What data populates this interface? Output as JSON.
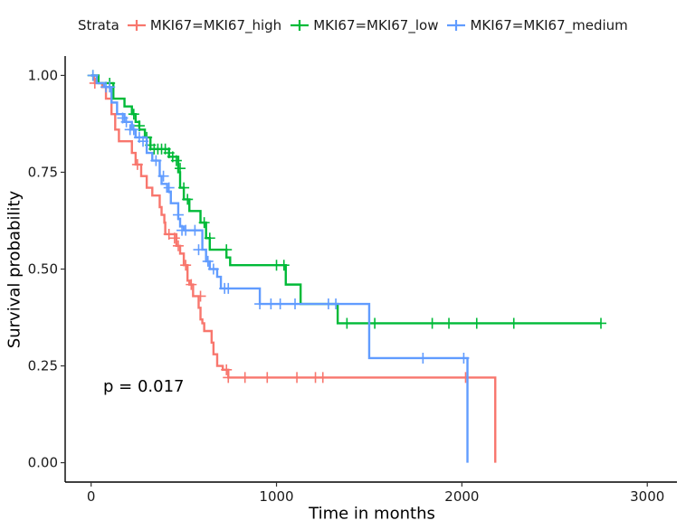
{
  "chart_data": {
    "type": "line",
    "subtype": "kaplan-meier-step",
    "xlabel": "Time in months",
    "ylabel": "Survival probability",
    "xlim": [
      -140,
      3160
    ],
    "ylim": [
      -0.05,
      1.05
    ],
    "xticks": [
      0,
      1000,
      2000,
      3000
    ],
    "xtick_labels": [
      "0",
      "1000",
      "2000",
      "3000"
    ],
    "yticks": [
      0,
      0.25,
      0.5,
      0.75,
      1.0
    ],
    "ytick_labels": [
      "0.00",
      "0.25",
      "0.50",
      "0.75",
      "1.00"
    ],
    "grid": false,
    "legend": {
      "title": "Strata",
      "position": "top"
    },
    "annotation": "p = 0.017",
    "series": [
      {
        "name": "MKI67=MKI67_high",
        "color": "#F8766D",
        "steps": [
          [
            0,
            1.0
          ],
          [
            15,
            0.99
          ],
          [
            20,
            0.98
          ],
          [
            60,
            0.97
          ],
          [
            80,
            0.94
          ],
          [
            110,
            0.9
          ],
          [
            130,
            0.86
          ],
          [
            150,
            0.83
          ],
          [
            220,
            0.8
          ],
          [
            240,
            0.77
          ],
          [
            270,
            0.74
          ],
          [
            300,
            0.71
          ],
          [
            330,
            0.69
          ],
          [
            370,
            0.66
          ],
          [
            380,
            0.64
          ],
          [
            395,
            0.62
          ],
          [
            400,
            0.59
          ],
          [
            460,
            0.56
          ],
          [
            480,
            0.54
          ],
          [
            500,
            0.51
          ],
          [
            520,
            0.47
          ],
          [
            530,
            0.46
          ],
          [
            550,
            0.43
          ],
          [
            580,
            0.4
          ],
          [
            590,
            0.37
          ],
          [
            600,
            0.36
          ],
          [
            610,
            0.34
          ],
          [
            650,
            0.31
          ],
          [
            660,
            0.28
          ],
          [
            680,
            0.25
          ],
          [
            710,
            0.24
          ],
          [
            740,
            0.22
          ],
          [
            2180,
            0.0
          ]
        ],
        "censored": [
          [
            20,
            0.98
          ],
          [
            250,
            0.77
          ],
          [
            420,
            0.59
          ],
          [
            450,
            0.58
          ],
          [
            470,
            0.56
          ],
          [
            510,
            0.51
          ],
          [
            540,
            0.46
          ],
          [
            590,
            0.43
          ],
          [
            730,
            0.24
          ],
          [
            740,
            0.22
          ],
          [
            830,
            0.22
          ],
          [
            950,
            0.22
          ],
          [
            1110,
            0.22
          ],
          [
            1210,
            0.22
          ],
          [
            1250,
            0.22
          ],
          [
            2020,
            0.22
          ]
        ]
      },
      {
        "name": "MKI67=MKI67_low",
        "color": "#00BA38",
        "steps": [
          [
            0,
            1.0
          ],
          [
            40,
            0.98
          ],
          [
            120,
            0.94
          ],
          [
            180,
            0.92
          ],
          [
            220,
            0.9
          ],
          [
            240,
            0.88
          ],
          [
            260,
            0.86
          ],
          [
            290,
            0.84
          ],
          [
            320,
            0.81
          ],
          [
            420,
            0.79
          ],
          [
            470,
            0.75
          ],
          [
            480,
            0.71
          ],
          [
            500,
            0.68
          ],
          [
            530,
            0.65
          ],
          [
            590,
            0.62
          ],
          [
            620,
            0.58
          ],
          [
            640,
            0.55
          ],
          [
            730,
            0.53
          ],
          [
            750,
            0.51
          ],
          [
            1050,
            0.46
          ],
          [
            1130,
            0.41
          ],
          [
            1330,
            0.36
          ],
          [
            2750,
            0.36
          ]
        ],
        "censored": [
          [
            10,
            1.0
          ],
          [
            100,
            0.98
          ],
          [
            230,
            0.9
          ],
          [
            260,
            0.87
          ],
          [
            300,
            0.84
          ],
          [
            320,
            0.82
          ],
          [
            340,
            0.81
          ],
          [
            360,
            0.81
          ],
          [
            380,
            0.81
          ],
          [
            400,
            0.81
          ],
          [
            420,
            0.8
          ],
          [
            440,
            0.79
          ],
          [
            460,
            0.78
          ],
          [
            480,
            0.76
          ],
          [
            500,
            0.71
          ],
          [
            520,
            0.68
          ],
          [
            610,
            0.62
          ],
          [
            640,
            0.58
          ],
          [
            730,
            0.55
          ],
          [
            1000,
            0.51
          ],
          [
            1040,
            0.51
          ],
          [
            1380,
            0.36
          ],
          [
            1530,
            0.36
          ],
          [
            1840,
            0.36
          ],
          [
            1930,
            0.36
          ],
          [
            2080,
            0.36
          ],
          [
            2280,
            0.36
          ],
          [
            2750,
            0.36
          ]
        ]
      },
      {
        "name": "MKI67=MKI67_medium",
        "color": "#619CFF",
        "steps": [
          [
            0,
            1.0
          ],
          [
            30,
            0.98
          ],
          [
            70,
            0.97
          ],
          [
            110,
            0.93
          ],
          [
            140,
            0.9
          ],
          [
            180,
            0.88
          ],
          [
            220,
            0.86
          ],
          [
            240,
            0.84
          ],
          [
            300,
            0.8
          ],
          [
            330,
            0.78
          ],
          [
            370,
            0.74
          ],
          [
            380,
            0.72
          ],
          [
            410,
            0.7
          ],
          [
            430,
            0.67
          ],
          [
            470,
            0.63
          ],
          [
            480,
            0.61
          ],
          [
            500,
            0.6
          ],
          [
            600,
            0.55
          ],
          [
            620,
            0.52
          ],
          [
            640,
            0.5
          ],
          [
            680,
            0.48
          ],
          [
            700,
            0.45
          ],
          [
            910,
            0.41
          ],
          [
            1500,
            0.27
          ],
          [
            2030,
            0.0
          ]
        ],
        "censored": [
          [
            10,
            1.0
          ],
          [
            80,
            0.97
          ],
          [
            100,
            0.97
          ],
          [
            170,
            0.89
          ],
          [
            190,
            0.88
          ],
          [
            210,
            0.86
          ],
          [
            230,
            0.86
          ],
          [
            260,
            0.84
          ],
          [
            280,
            0.83
          ],
          [
            350,
            0.78
          ],
          [
            390,
            0.74
          ],
          [
            420,
            0.71
          ],
          [
            470,
            0.64
          ],
          [
            490,
            0.6
          ],
          [
            510,
            0.6
          ],
          [
            560,
            0.6
          ],
          [
            580,
            0.55
          ],
          [
            630,
            0.52
          ],
          [
            660,
            0.5
          ],
          [
            720,
            0.45
          ],
          [
            740,
            0.45
          ],
          [
            910,
            0.41
          ],
          [
            970,
            0.41
          ],
          [
            1020,
            0.41
          ],
          [
            1100,
            0.41
          ],
          [
            1280,
            0.41
          ],
          [
            1320,
            0.41
          ],
          [
            1790,
            0.27
          ],
          [
            2010,
            0.27
          ]
        ]
      }
    ]
  }
}
